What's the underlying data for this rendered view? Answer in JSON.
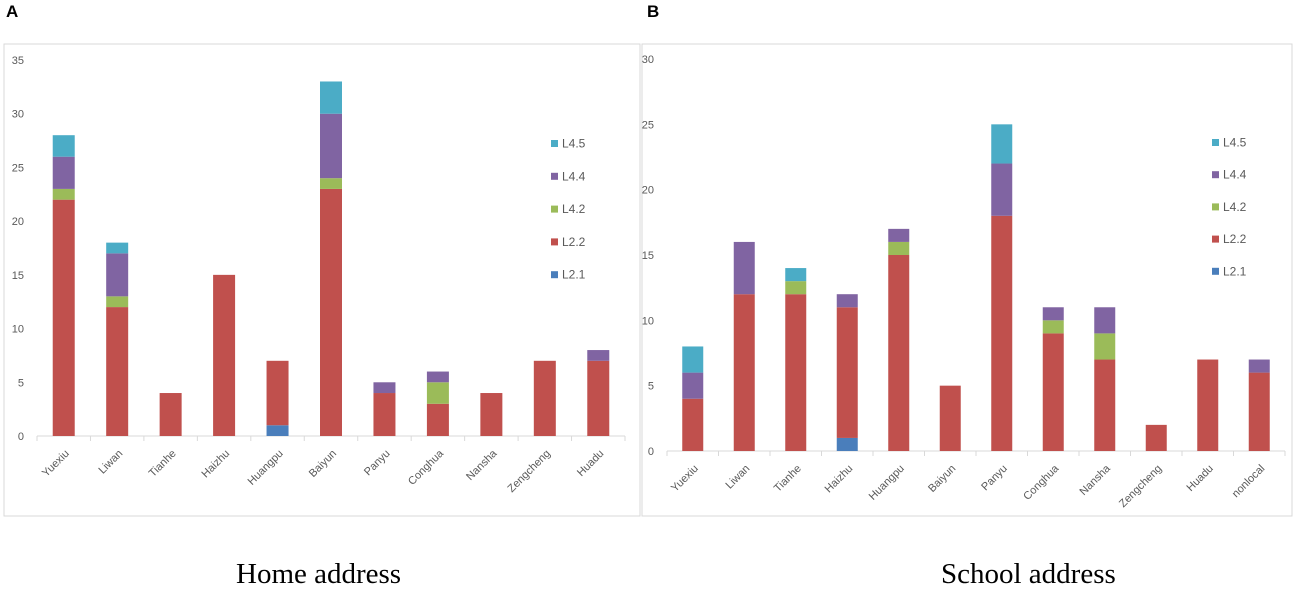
{
  "figure": {
    "panel_a_letter": "A",
    "panel_b_letter": "B",
    "caption_a": "Home address",
    "caption_b": "School address"
  },
  "colors": {
    "L2.1": "#4a7ebb",
    "L2.2": "#c0504d",
    "L4.2": "#9bbb59",
    "L4.4": "#8064a2",
    "L4.5": "#4bacc6"
  },
  "chart_data": [
    {
      "type": "bar",
      "stacked": true,
      "title": "Home address",
      "xlabel": "",
      "ylabel": "",
      "ylim": [
        0,
        35
      ],
      "yticks": [
        0,
        5,
        10,
        15,
        20,
        25,
        30,
        35
      ],
      "legend": [
        "L4.5",
        "L4.4",
        "L4.2",
        "L2.2",
        "L2.1"
      ],
      "categories": [
        "Yuexiu",
        "Liwan",
        "Tianhe",
        "Haizhu",
        "Huangpu",
        "Baiyun",
        "Panyu",
        "Conghua",
        "Nansha",
        "Zengcheng",
        "Huadu"
      ],
      "series": [
        {
          "name": "L2.1",
          "values": [
            0,
            0,
            0,
            0,
            1,
            0,
            0,
            0,
            0,
            0,
            0
          ]
        },
        {
          "name": "L2.2",
          "values": [
            22,
            12,
            4,
            15,
            6,
            23,
            4,
            3,
            4,
            7,
            7
          ]
        },
        {
          "name": "L4.2",
          "values": [
            1,
            1,
            0,
            0,
            0,
            1,
            0,
            2,
            0,
            0,
            0
          ]
        },
        {
          "name": "L4.4",
          "values": [
            3,
            4,
            0,
            0,
            0,
            6,
            1,
            1,
            0,
            0,
            1
          ]
        },
        {
          "name": "L4.5",
          "values": [
            2,
            1,
            0,
            0,
            0,
            3,
            0,
            0,
            0,
            0,
            0
          ]
        }
      ]
    },
    {
      "type": "bar",
      "stacked": true,
      "title": "School address",
      "xlabel": "",
      "ylabel": "",
      "ylim": [
        0,
        30
      ],
      "yticks": [
        0,
        5,
        10,
        15,
        20,
        25,
        30
      ],
      "legend": [
        "L4.5",
        "L4.4",
        "L4.2",
        "L2.2",
        "L2.1"
      ],
      "categories": [
        "Yuexiu",
        "Liwan",
        "Tianhe",
        "Haizhu",
        "Huangpu",
        "Baiyun",
        "Panyu",
        "Conghua",
        "Nansha",
        "Zengcheng",
        "Huadu",
        "nonlocal"
      ],
      "series": [
        {
          "name": "L2.1",
          "values": [
            0,
            0,
            0,
            1,
            0,
            0,
            0,
            0,
            0,
            0,
            0,
            0
          ]
        },
        {
          "name": "L2.2",
          "values": [
            4,
            12,
            12,
            10,
            15,
            5,
            18,
            9,
            7,
            2,
            7,
            6
          ]
        },
        {
          "name": "L4.2",
          "values": [
            0,
            0,
            1,
            0,
            1,
            0,
            0,
            1,
            2,
            0,
            0,
            0
          ]
        },
        {
          "name": "L4.4",
          "values": [
            2,
            4,
            0,
            1,
            1,
            0,
            4,
            1,
            2,
            0,
            0,
            1
          ]
        },
        {
          "name": "L4.5",
          "values": [
            2,
            0,
            1,
            0,
            0,
            0,
            3,
            0,
            0,
            0,
            0,
            0
          ]
        }
      ]
    }
  ]
}
